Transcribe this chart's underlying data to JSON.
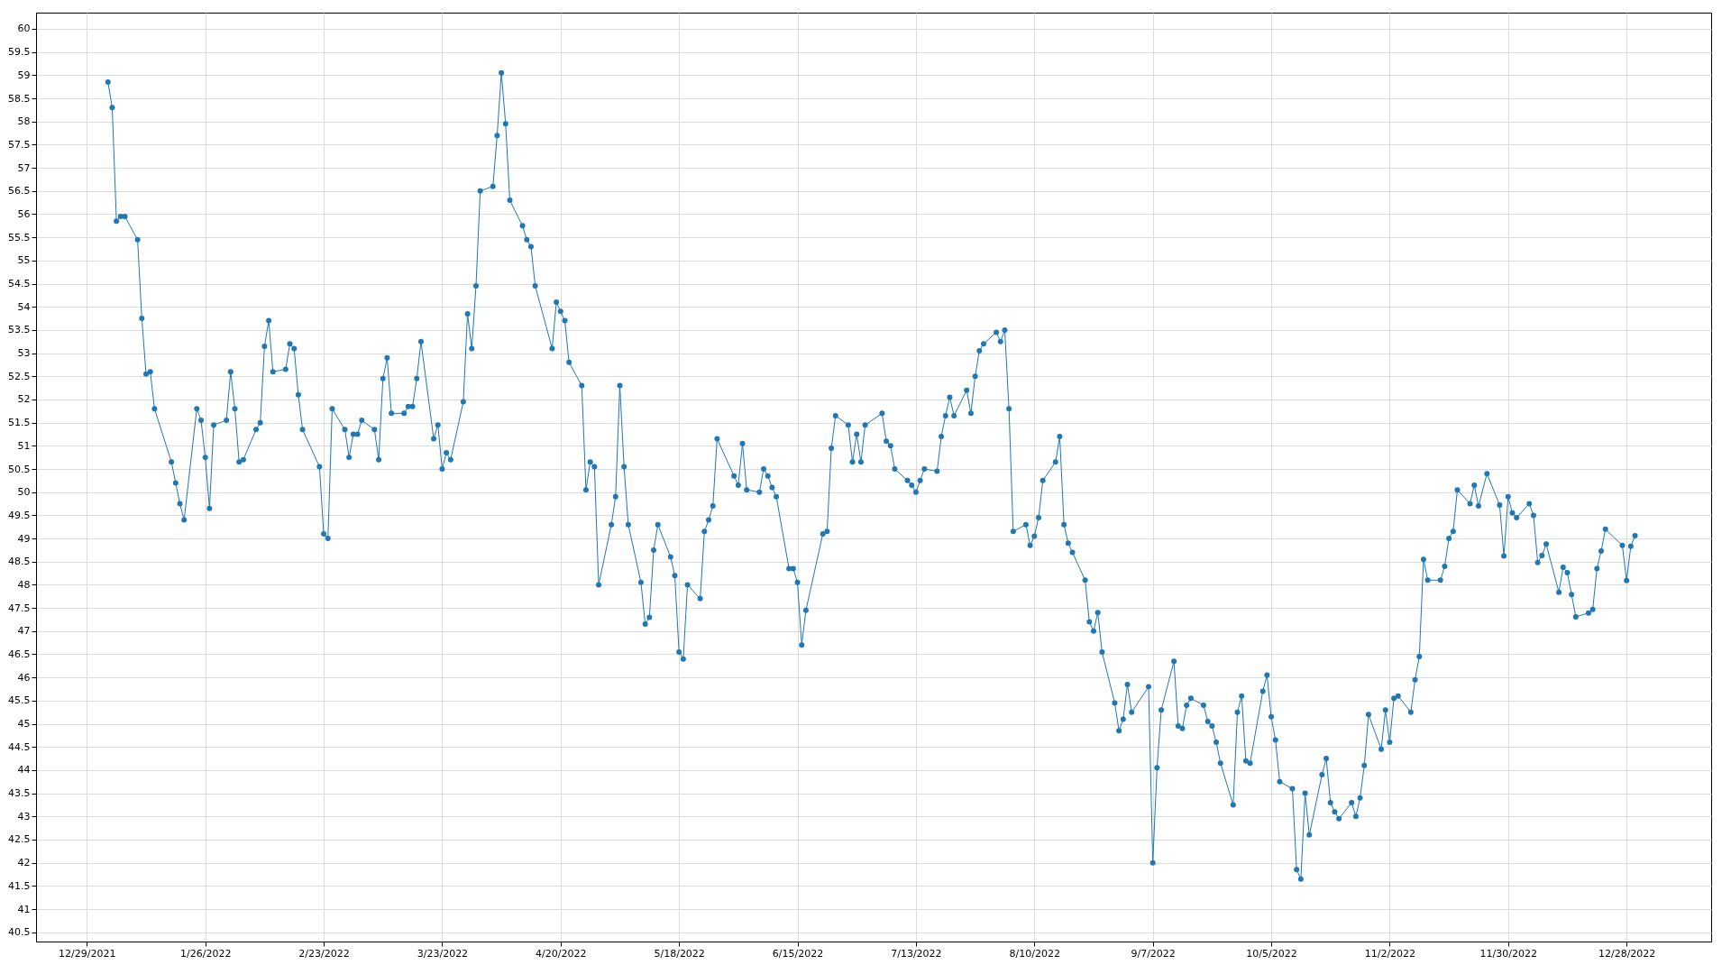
{
  "chart_data": {
    "type": "line",
    "marker": "circle",
    "grid": true,
    "xlim": [
      "2021-12-17",
      "2023-01-17"
    ],
    "ylim": [
      40.3,
      60.35
    ],
    "xticks": [
      {
        "value": "2021-12-29",
        "label": "12/29/2021"
      },
      {
        "value": "2022-01-26",
        "label": "1/26/2022"
      },
      {
        "value": "2022-02-23",
        "label": "2/23/2022"
      },
      {
        "value": "2022-03-23",
        "label": "3/23/2022"
      },
      {
        "value": "2022-04-20",
        "label": "4/20/2022"
      },
      {
        "value": "2022-05-18",
        "label": "5/18/2022"
      },
      {
        "value": "2022-06-15",
        "label": "6/15/2022"
      },
      {
        "value": "2022-07-13",
        "label": "7/13/2022"
      },
      {
        "value": "2022-08-10",
        "label": "8/10/2022"
      },
      {
        "value": "2022-09-07",
        "label": "9/7/2022"
      },
      {
        "value": "2022-10-05",
        "label": "10/5/2022"
      },
      {
        "value": "2022-11-02",
        "label": "11/2/2022"
      },
      {
        "value": "2022-11-30",
        "label": "11/30/2022"
      },
      {
        "value": "2022-12-28",
        "label": "12/28/2022"
      }
    ],
    "yticks": [
      40.5,
      41,
      41.5,
      42,
      42.5,
      43,
      43.5,
      44,
      44.5,
      45,
      45.5,
      46,
      46.5,
      47,
      47.5,
      48,
      48.5,
      49,
      49.5,
      50,
      50.5,
      51,
      51.5,
      52,
      52.5,
      53,
      53.5,
      54,
      54.5,
      55,
      55.5,
      56,
      56.5,
      57,
      57.5,
      58,
      58.5,
      59,
      59.5,
      60
    ],
    "x": [
      "2022-01-03",
      "2022-01-04",
      "2022-01-05",
      "2022-01-06",
      "2022-01-07",
      "2022-01-10",
      "2022-01-11",
      "2022-01-12",
      "2022-01-13",
      "2022-01-14",
      "2022-01-18",
      "2022-01-19",
      "2022-01-20",
      "2022-01-21",
      "2022-01-24",
      "2022-01-25",
      "2022-01-26",
      "2022-01-27",
      "2022-01-28",
      "2022-01-31",
      "2022-02-01",
      "2022-02-02",
      "2022-02-03",
      "2022-02-04",
      "2022-02-07",
      "2022-02-08",
      "2022-02-09",
      "2022-02-10",
      "2022-02-11",
      "2022-02-14",
      "2022-02-15",
      "2022-02-16",
      "2022-02-17",
      "2022-02-18",
      "2022-02-22",
      "2022-02-23",
      "2022-02-24",
      "2022-02-25",
      "2022-02-28",
      "2022-03-01",
      "2022-03-02",
      "2022-03-03",
      "2022-03-04",
      "2022-03-07",
      "2022-03-08",
      "2022-03-09",
      "2022-03-10",
      "2022-03-11",
      "2022-03-14",
      "2022-03-15",
      "2022-03-16",
      "2022-03-17",
      "2022-03-18",
      "2022-03-21",
      "2022-03-22",
      "2022-03-23",
      "2022-03-24",
      "2022-03-25",
      "2022-03-28",
      "2022-03-29",
      "2022-03-30",
      "2022-03-31",
      "2022-04-01",
      "2022-04-04",
      "2022-04-05",
      "2022-04-06",
      "2022-04-07",
      "2022-04-08",
      "2022-04-11",
      "2022-04-12",
      "2022-04-13",
      "2022-04-14",
      "2022-04-18",
      "2022-04-19",
      "2022-04-20",
      "2022-04-21",
      "2022-04-22",
      "2022-04-25",
      "2022-04-26",
      "2022-04-27",
      "2022-04-28",
      "2022-04-29",
      "2022-05-02",
      "2022-05-03",
      "2022-05-04",
      "2022-05-05",
      "2022-05-06",
      "2022-05-09",
      "2022-05-10",
      "2022-05-11",
      "2022-05-12",
      "2022-05-13",
      "2022-05-16",
      "2022-05-17",
      "2022-05-18",
      "2022-05-19",
      "2022-05-20",
      "2022-05-23",
      "2022-05-24",
      "2022-05-25",
      "2022-05-26",
      "2022-05-27",
      "2022-05-31",
      "2022-06-01",
      "2022-06-02",
      "2022-06-03",
      "2022-06-06",
      "2022-06-07",
      "2022-06-08",
      "2022-06-09",
      "2022-06-10",
      "2022-06-13",
      "2022-06-14",
      "2022-06-15",
      "2022-06-16",
      "2022-06-17",
      "2022-06-21",
      "2022-06-22",
      "2022-06-23",
      "2022-06-24",
      "2022-06-27",
      "2022-06-28",
      "2022-06-29",
      "2022-06-30",
      "2022-07-01",
      "2022-07-05",
      "2022-07-06",
      "2022-07-07",
      "2022-07-08",
      "2022-07-11",
      "2022-07-12",
      "2022-07-13",
      "2022-07-14",
      "2022-07-15",
      "2022-07-18",
      "2022-07-19",
      "2022-07-20",
      "2022-07-21",
      "2022-07-22",
      "2022-07-25",
      "2022-07-26",
      "2022-07-27",
      "2022-07-28",
      "2022-07-29",
      "2022-08-01",
      "2022-08-02",
      "2022-08-03",
      "2022-08-04",
      "2022-08-05",
      "2022-08-08",
      "2022-08-09",
      "2022-08-10",
      "2022-08-11",
      "2022-08-12",
      "2022-08-15",
      "2022-08-16",
      "2022-08-17",
      "2022-08-18",
      "2022-08-19",
      "2022-08-22",
      "2022-08-23",
      "2022-08-24",
      "2022-08-25",
      "2022-08-26",
      "2022-08-29",
      "2022-08-30",
      "2022-08-31",
      "2022-09-01",
      "2022-09-02",
      "2022-09-06",
      "2022-09-07",
      "2022-09-08",
      "2022-09-09",
      "2022-09-12",
      "2022-09-13",
      "2022-09-14",
      "2022-09-15",
      "2022-09-16",
      "2022-09-19",
      "2022-09-20",
      "2022-09-21",
      "2022-09-22",
      "2022-09-23",
      "2022-09-26",
      "2022-09-27",
      "2022-09-28",
      "2022-09-29",
      "2022-09-30",
      "2022-10-03",
      "2022-10-04",
      "2022-10-05",
      "2022-10-06",
      "2022-10-07",
      "2022-10-10",
      "2022-10-11",
      "2022-10-12",
      "2022-10-13",
      "2022-10-14",
      "2022-10-17",
      "2022-10-18",
      "2022-10-19",
      "2022-10-20",
      "2022-10-21",
      "2022-10-24",
      "2022-10-25",
      "2022-10-26",
      "2022-10-27",
      "2022-10-28",
      "2022-10-31",
      "2022-11-01",
      "2022-11-02",
      "2022-11-03",
      "2022-11-04",
      "2022-11-07",
      "2022-11-08",
      "2022-11-09",
      "2022-11-10",
      "2022-11-11",
      "2022-11-14",
      "2022-11-15",
      "2022-11-16",
      "2022-11-17",
      "2022-11-18",
      "2022-11-21",
      "2022-11-22",
      "2022-11-23",
      "2022-11-25",
      "2022-11-28",
      "2022-11-29",
      "2022-11-30",
      "2022-12-01",
      "2022-12-02",
      "2022-12-05",
      "2022-12-06",
      "2022-12-07",
      "2022-12-08",
      "2022-12-09",
      "2022-12-12",
      "2022-12-13",
      "2022-12-14",
      "2022-12-15",
      "2022-12-16",
      "2022-12-19",
      "2022-12-20",
      "2022-12-21",
      "2022-12-22",
      "2022-12-23",
      "2022-12-27",
      "2022-12-28",
      "2022-12-29",
      "2022-12-30"
    ],
    "series": [
      {
        "color": "#1f77b4",
        "values": [
          58.85,
          58.3,
          55.85,
          55.95,
          55.95,
          55.45,
          53.75,
          52.55,
          52.6,
          51.8,
          50.65,
          50.2,
          49.75,
          49.4,
          51.8,
          51.55,
          50.75,
          49.65,
          51.45,
          51.55,
          52.6,
          51.8,
          50.65,
          50.7,
          51.35,
          51.5,
          53.15,
          53.7,
          52.6,
          52.65,
          53.2,
          53.1,
          52.1,
          51.35,
          50.55,
          49.1,
          49.0,
          51.8,
          51.35,
          50.75,
          51.25,
          51.25,
          51.55,
          51.35,
          50.7,
          52.45,
          52.9,
          51.7,
          51.7,
          51.85,
          51.85,
          52.45,
          53.25,
          51.15,
          51.45,
          50.5,
          50.85,
          50.7,
          51.95,
          53.85,
          53.1,
          54.45,
          56.5,
          56.6,
          57.7,
          59.05,
          57.95,
          56.3,
          55.75,
          55.45,
          55.3,
          54.45,
          53.1,
          54.1,
          53.9,
          53.7,
          52.8,
          52.3,
          50.05,
          50.65,
          50.55,
          48.0,
          49.3,
          49.9,
          52.3,
          50.55,
          49.3,
          48.05,
          47.15,
          47.3,
          48.75,
          49.3,
          48.6,
          48.2,
          46.55,
          46.4,
          48.0,
          47.7,
          49.15,
          49.4,
          49.7,
          51.15,
          50.35,
          50.15,
          51.05,
          50.05,
          50.0,
          50.5,
          50.35,
          50.1,
          49.9,
          48.35,
          48.35,
          48.05,
          46.7,
          47.45,
          49.1,
          49.15,
          50.95,
          51.65,
          51.45,
          50.65,
          51.25,
          50.65,
          51.45,
          51.7,
          51.1,
          51.0,
          50.5,
          50.25,
          50.15,
          50.0,
          50.25,
          50.5,
          50.45,
          51.2,
          51.65,
          52.05,
          51.65,
          52.2,
          51.7,
          52.5,
          53.05,
          53.2,
          53.45,
          53.25,
          53.5,
          51.8,
          49.15,
          49.3,
          48.85,
          49.05,
          49.45,
          50.25,
          50.65,
          51.2,
          49.3,
          48.9,
          48.7,
          48.1,
          47.2,
          47.0,
          47.4,
          46.55,
          45.45,
          44.85,
          45.1,
          45.85,
          45.25,
          45.8,
          42.0,
          44.05,
          45.3,
          46.35,
          44.95,
          44.9,
          45.4,
          45.55,
          45.4,
          45.05,
          44.95,
          44.6,
          44.15,
          43.25,
          45.25,
          45.6,
          44.2,
          44.15,
          45.7,
          46.05,
          45.15,
          44.65,
          43.75,
          43.6,
          41.85,
          41.65,
          43.5,
          42.6,
          43.9,
          44.25,
          43.3,
          43.1,
          42.95,
          43.3,
          43.0,
          43.4,
          44.1,
          45.2,
          44.45,
          45.3,
          44.6,
          45.55,
          45.6,
          45.25,
          45.95,
          46.45,
          48.55,
          48.1,
          48.1,
          48.4,
          49.0,
          49.15,
          50.05,
          49.75,
          50.15,
          49.7,
          50.4,
          49.72,
          48.62,
          49.9,
          49.55,
          49.45,
          49.75,
          49.5,
          48.48,
          48.63,
          48.88,
          47.84,
          48.38,
          48.26,
          47.79,
          47.31,
          47.39,
          47.47,
          48.35,
          48.73,
          49.2,
          48.85,
          48.09,
          48.83,
          49.06
        ]
      }
    ]
  }
}
